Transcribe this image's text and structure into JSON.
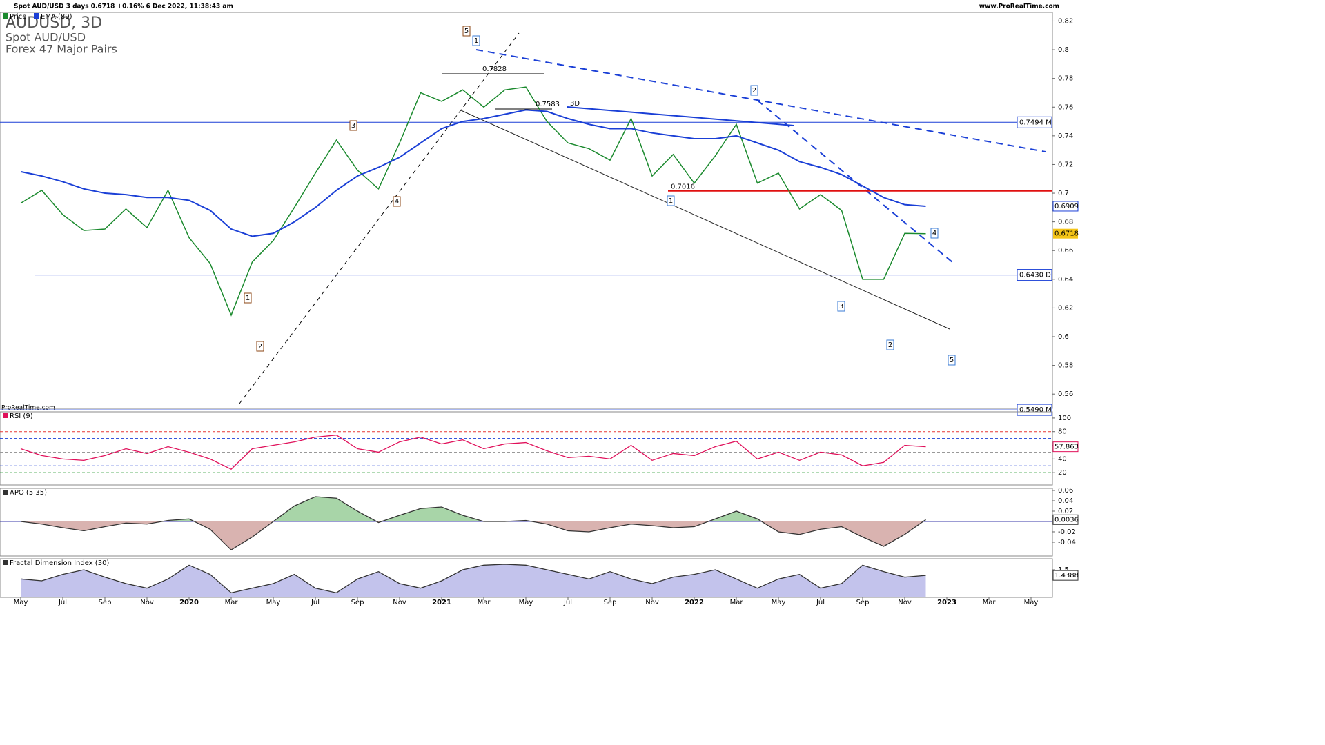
{
  "header": {
    "instrument": "Spot AUD/USD 3 days 0.6718 +0.16% 6 Dec 2022, 11:38:43 am",
    "site": "www.ProRealTime.com",
    "title": "AUDUSD, 3D",
    "subtitle": "Spot AUD/USD",
    "group": "Forex 47 Major Pairs",
    "watermark": "ProRealTime.com"
  },
  "chart_data": [
    {
      "type": "line",
      "name": "Price",
      "categories": [
        "May",
        null,
        "Jul",
        null,
        "Sep",
        null,
        "Nov",
        null,
        "2020",
        null,
        "Mar",
        null,
        "May",
        null,
        "Jul",
        null,
        "Sep",
        null,
        "Nov",
        null,
        "2021",
        null,
        "Mar",
        null,
        "May",
        null,
        "Jul",
        null,
        "Sep",
        null,
        "Nov",
        null,
        "2022",
        null,
        "Mar",
        null,
        "May",
        null,
        "Jul",
        null,
        "Sep",
        null,
        "Nov",
        null,
        "2023",
        null,
        "Mar",
        null,
        "May"
      ],
      "series": [
        {
          "name": "Price",
          "color": "#1b8a2e",
          "values": [
            0.693,
            0.702,
            0.685,
            0.674,
            0.675,
            0.689,
            0.676,
            0.702,
            0.669,
            0.651,
            0.615,
            0.652,
            0.667,
            0.69,
            0.714,
            0.737,
            0.716,
            0.703,
            0.735,
            0.77,
            0.764,
            0.772,
            0.76,
            0.772,
            0.774,
            0.75,
            0.735,
            0.731,
            0.723,
            0.752,
            0.712,
            0.727,
            0.707,
            0.726,
            0.748,
            0.707,
            0.714,
            0.689,
            0.699,
            0.688,
            0.64,
            0.64,
            0.672,
            0.6718,
            null,
            null,
            null,
            null,
            null
          ],
          "value_labels": [
            null,
            null,
            null,
            null,
            null,
            null,
            null,
            null,
            null,
            null,
            null,
            null,
            null,
            null,
            null,
            null,
            null,
            null,
            null,
            null,
            null,
            null,
            null,
            null,
            null,
            null,
            null,
            null,
            null,
            null,
            null,
            null,
            null,
            null,
            null,
            null,
            null,
            null,
            null,
            null,
            null,
            null,
            null,
            "0.6718",
            null,
            null,
            null,
            null,
            null
          ]
        },
        {
          "name": "EMA (89)",
          "color": "#1a3fd6",
          "values": [
            0.715,
            0.712,
            0.708,
            0.703,
            0.7,
            0.699,
            0.697,
            0.697,
            0.695,
            0.688,
            0.675,
            0.67,
            0.672,
            0.68,
            0.69,
            0.702,
            0.712,
            0.718,
            0.725,
            0.735,
            0.745,
            0.75,
            0.752,
            0.755,
            0.758,
            0.757,
            0.752,
            0.748,
            0.745,
            0.745,
            0.742,
            0.74,
            0.738,
            0.738,
            0.74,
            0.735,
            0.73,
            0.722,
            0.718,
            0.713,
            0.705,
            0.697,
            0.692,
            0.6909,
            null,
            null,
            null,
            null,
            null
          ],
          "value_labels": [
            null,
            null,
            null,
            null,
            null,
            null,
            null,
            null,
            null,
            null,
            null,
            null,
            null,
            null,
            null,
            null,
            null,
            null,
            null,
            null,
            null,
            null,
            null,
            null,
            null,
            null,
            null,
            null,
            null,
            null,
            null,
            null,
            null,
            null,
            null,
            null,
            null,
            null,
            null,
            null,
            null,
            null,
            null,
            "0.6909",
            null,
            null,
            null,
            null,
            null
          ]
        }
      ],
      "ylim": [
        0.55,
        0.826
      ],
      "yticks": [
        0.56,
        0.58,
        0.6,
        0.62,
        0.64,
        0.66,
        0.68,
        0.7,
        0.72,
        0.74,
        0.76,
        0.78,
        0.8,
        0.82
      ],
      "levels": [
        {
          "value": 0.7494,
          "label": "0.7494 M",
          "color": "#1a3fd6"
        },
        {
          "value": 0.643,
          "label": "0.6430 D",
          "color": "#1a3fd6"
        },
        {
          "value": 0.549,
          "label": "0.5490 M",
          "color": "#1a3fd6"
        },
        {
          "value": 0.7016,
          "label": "0.7016",
          "color": "#e01010"
        }
      ],
      "annotations": [
        {
          "text": "1",
          "color": "#8b4513"
        },
        {
          "text": "2",
          "color": "#8b4513"
        },
        {
          "text": "3",
          "color": "#8b4513"
        },
        {
          "text": "4",
          "color": "#8b4513"
        },
        {
          "text": "5",
          "color": "#8b4513"
        },
        {
          "text": "1",
          "color": "#3a7bd5"
        },
        {
          "text": "2",
          "color": "#3a7bd5"
        },
        {
          "text": "1",
          "color": "#3a7bd5"
        },
        {
          "text": "3",
          "color": "#3a7bd5"
        },
        {
          "text": "2",
          "color": "#3a7bd5"
        },
        {
          "text": "4",
          "color": "#3a7bd5"
        },
        {
          "text": "5",
          "color": "#3a7bd5"
        },
        {
          "text": "0.7828",
          "color": "#000000"
        },
        {
          "text": "0.7583",
          "color": "#000000"
        },
        {
          "text": "3D",
          "color": "#000000"
        }
      ]
    },
    {
      "type": "line",
      "name": "RSI (9)",
      "series": [
        {
          "name": "RSI (9)",
          "color": "#e0105a",
          "values": [
            55,
            45,
            40,
            38,
            45,
            55,
            48,
            58,
            50,
            40,
            25,
            55,
            60,
            65,
            72,
            75,
            55,
            50,
            65,
            72,
            62,
            68,
            55,
            62,
            64,
            52,
            42,
            44,
            40,
            60,
            38,
            48,
            45,
            58,
            66,
            40,
            50,
            38,
            50,
            46,
            30,
            35,
            60,
            57.863,
            null,
            null,
            null,
            null,
            null
          ],
          "value_labels": [
            null,
            null,
            null,
            null,
            null,
            null,
            null,
            null,
            null,
            null,
            null,
            null,
            null,
            null,
            null,
            null,
            null,
            null,
            null,
            null,
            null,
            null,
            null,
            null,
            null,
            null,
            null,
            null,
            null,
            null,
            null,
            null,
            null,
            null,
            null,
            null,
            null,
            null,
            null,
            null,
            null,
            null,
            null,
            "57.863",
            null,
            null,
            null,
            null,
            null
          ]
        }
      ],
      "ylim": [
        2,
        109
      ],
      "yticks": [
        20,
        40,
        60,
        80,
        100
      ],
      "levels": [
        {
          "value": 80,
          "color": "#e53935"
        },
        {
          "value": 70,
          "color": "#1a3fd6"
        },
        {
          "value": 50,
          "color": "#999999"
        },
        {
          "value": 30,
          "color": "#1a3fd6"
        },
        {
          "value": 20,
          "color": "#2e9d3a"
        }
      ]
    },
    {
      "type": "area",
      "name": "APO (5 35)",
      "series": [
        {
          "name": "APO (5 35)",
          "color": "#333333",
          "values": [
            0,
            -0.005,
            -0.012,
            -0.018,
            -0.01,
            -0.003,
            -0.005,
            0.002,
            0.005,
            -0.015,
            -0.055,
            -0.03,
            0,
            0.03,
            0.048,
            0.045,
            0.02,
            -0.002,
            0.012,
            0.025,
            0.028,
            0.012,
            0,
            0,
            0.002,
            -0.005,
            -0.018,
            -0.02,
            -0.012,
            -0.005,
            -0.008,
            -0.012,
            -0.01,
            0.005,
            0.02,
            0.005,
            -0.02,
            -0.025,
            -0.015,
            -0.01,
            -0.03,
            -0.048,
            -0.025,
            0.0036,
            null,
            null,
            null,
            null,
            null
          ],
          "value_labels": [
            null,
            null,
            null,
            null,
            null,
            null,
            null,
            null,
            null,
            null,
            null,
            null,
            null,
            null,
            null,
            null,
            null,
            null,
            null,
            null,
            null,
            null,
            null,
            null,
            null,
            null,
            null,
            null,
            null,
            null,
            null,
            null,
            null,
            null,
            null,
            null,
            null,
            null,
            null,
            null,
            null,
            null,
            null,
            "0.0036",
            null,
            null,
            null,
            null,
            null
          ]
        }
      ],
      "ylim": [
        -0.0667,
        0.064
      ],
      "yticks": [
        -0.04,
        -0.02,
        0.02,
        0.04,
        0.06
      ],
      "positive_color": "#a8d5a8",
      "negative_color": "#d9b3b0"
    },
    {
      "type": "area",
      "name": "Fractal Dimension Index (30)",
      "series": [
        {
          "name": "Fractal Dimension Index (30)",
          "color": "#333333",
          "values": [
            1.4,
            1.38,
            1.45,
            1.5,
            1.42,
            1.35,
            1.3,
            1.4,
            1.55,
            1.45,
            1.25,
            1.3,
            1.35,
            1.45,
            1.3,
            1.25,
            1.4,
            1.48,
            1.35,
            1.3,
            1.38,
            1.5,
            1.55,
            1.56,
            1.55,
            1.5,
            1.45,
            1.4,
            1.48,
            1.4,
            1.35,
            1.42,
            1.45,
            1.5,
            1.4,
            1.3,
            1.4,
            1.45,
            1.3,
            1.35,
            1.55,
            1.48,
            1.42,
            1.4388,
            null,
            null,
            null,
            null,
            null
          ],
          "value_labels": [
            null,
            null,
            null,
            null,
            null,
            null,
            null,
            null,
            null,
            null,
            null,
            null,
            null,
            null,
            null,
            null,
            null,
            null,
            null,
            null,
            null,
            null,
            null,
            null,
            null,
            null,
            null,
            null,
            null,
            null,
            null,
            null,
            null,
            null,
            null,
            null,
            null,
            null,
            null,
            null,
            null,
            null,
            null,
            "1.4388",
            null,
            null,
            null,
            null,
            null
          ]
        }
      ],
      "ylim": [
        1.2,
        1.62
      ],
      "yticks": [
        1.5
      ],
      "fill_color": "#c3c3ec"
    }
  ]
}
